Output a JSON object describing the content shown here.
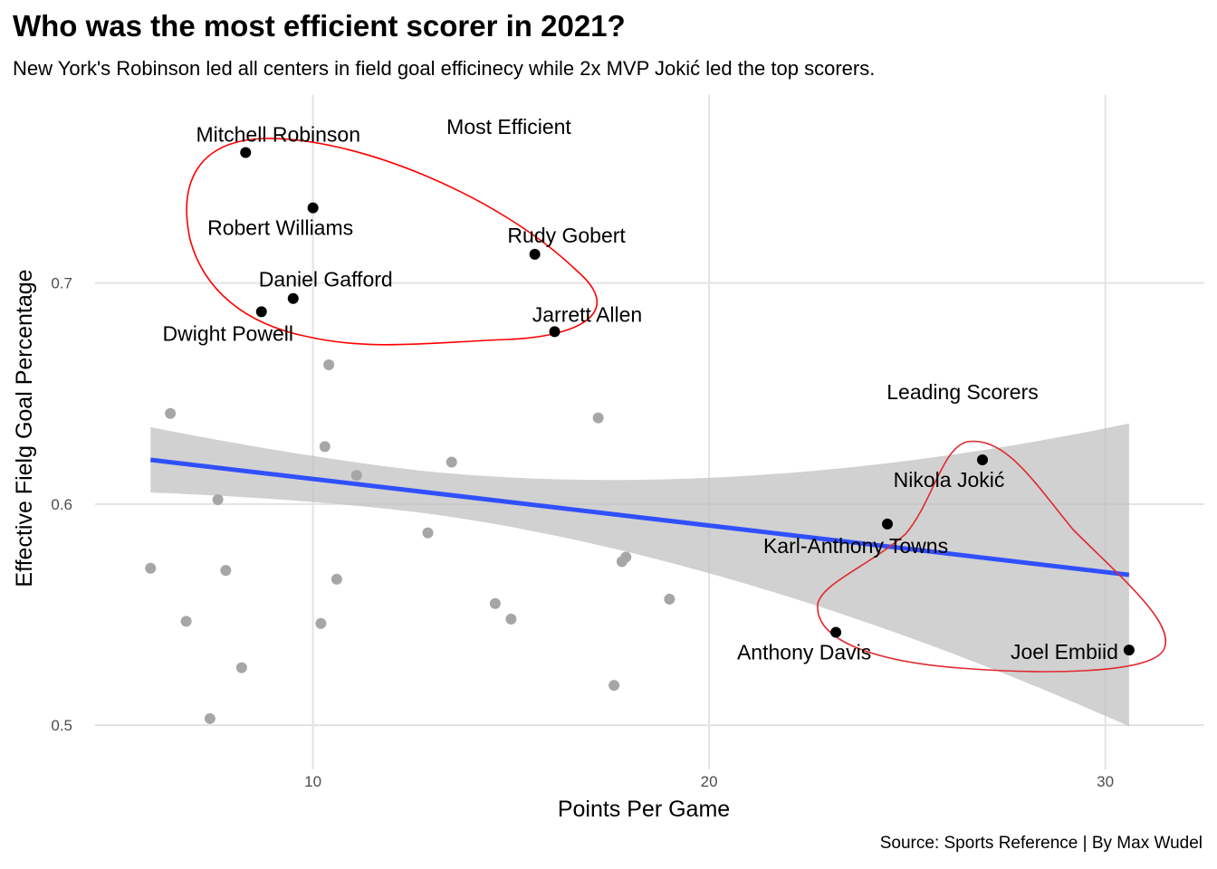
{
  "title": "Who was the most efficient scorer in 2021?",
  "subtitle": "New York's Robinson led all centers in field goal efficinecy while 2x MVP Jokić led the top scorers.",
  "caption": "Source: Sports Reference | By Max Wudel",
  "chart_data": {
    "type": "scatter",
    "xlabel": "Points Per Game",
    "ylabel": "Effective Fielg Goal Percentage",
    "xlim": [
      4.5,
      32.5
    ],
    "ylim": [
      0.48,
      0.785
    ],
    "x_ticks": [
      10,
      20,
      30
    ],
    "x_tick_labels": [
      "10",
      "20",
      "30"
    ],
    "y_ticks": [
      0.5,
      0.6,
      0.7
    ],
    "y_tick_labels": [
      "0.5",
      "0.6",
      "0.7"
    ],
    "grid": true,
    "colors": {
      "background_point": "#a6a6a6",
      "highlight_point": "#000000",
      "trend_line": "#3050ff",
      "confidence_band": "#bfbfbf",
      "group_outline": "#ff0000"
    },
    "background_points": [
      {
        "x": 5.9,
        "y": 0.571
      },
      {
        "x": 6.4,
        "y": 0.641
      },
      {
        "x": 6.8,
        "y": 0.547
      },
      {
        "x": 7.4,
        "y": 0.503
      },
      {
        "x": 7.6,
        "y": 0.602
      },
      {
        "x": 7.8,
        "y": 0.57
      },
      {
        "x": 8.2,
        "y": 0.526
      },
      {
        "x": 10.2,
        "y": 0.546
      },
      {
        "x": 10.3,
        "y": 0.626
      },
      {
        "x": 10.4,
        "y": 0.663
      },
      {
        "x": 10.6,
        "y": 0.566
      },
      {
        "x": 11.1,
        "y": 0.613
      },
      {
        "x": 12.9,
        "y": 0.587
      },
      {
        "x": 13.5,
        "y": 0.619
      },
      {
        "x": 14.6,
        "y": 0.555
      },
      {
        "x": 15.0,
        "y": 0.548
      },
      {
        "x": 17.2,
        "y": 0.639
      },
      {
        "x": 17.6,
        "y": 0.518
      },
      {
        "x": 17.8,
        "y": 0.574
      },
      {
        "x": 17.9,
        "y": 0.576
      },
      {
        "x": 19.0,
        "y": 0.557
      }
    ],
    "labeled_points": [
      {
        "name": "Mitchell Robinson",
        "x": 8.3,
        "y": 0.759
      },
      {
        "name": "Robert Williams",
        "x": 10.0,
        "y": 0.734
      },
      {
        "name": "Rudy Gobert",
        "x": 15.6,
        "y": 0.713
      },
      {
        "name": "Daniel Gafford",
        "x": 9.5,
        "y": 0.693
      },
      {
        "name": "Dwight Powell",
        "x": 8.7,
        "y": 0.687
      },
      {
        "name": "Jarrett Allen",
        "x": 16.1,
        "y": 0.678
      },
      {
        "name": "Nikola Jokić",
        "x": 26.9,
        "y": 0.62
      },
      {
        "name": "Karl-Anthony Towns",
        "x": 24.5,
        "y": 0.591
      },
      {
        "name": "Anthony Davis",
        "x": 23.2,
        "y": 0.542
      },
      {
        "name": "Joel Embiid",
        "x": 30.6,
        "y": 0.534
      }
    ],
    "group_labels": [
      "Most Efficient",
      "Leading Scorers"
    ],
    "trend_line": {
      "x": [
        5.9,
        30.6
      ],
      "y": [
        0.62,
        0.568
      ]
    }
  }
}
